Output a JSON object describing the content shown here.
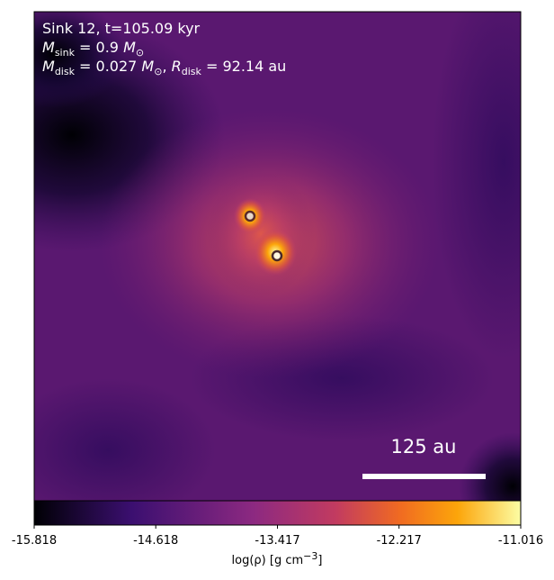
{
  "chart_data": {
    "type": "image",
    "annotations": {
      "line1": "Sink 12, t=105.09 kyr",
      "line2": [
        "M",
        "sink",
        " = 0.9 ",
        "M",
        "⊙"
      ],
      "line3": [
        "M",
        "disk",
        " = 0.027 ",
        "M",
        "⊙",
        ", ",
        "R",
        "disk",
        " = 92.14 au"
      ]
    },
    "scale_bar": "125 au",
    "colorbar": {
      "label": [
        "log(ρ) [g cm",
        "−3",
        "]"
      ],
      "xlim": [
        -15.818,
        -11.016
      ],
      "xticks": [
        -15.818,
        -14.618,
        -13.417,
        -12.217,
        -11.016
      ]
    }
  }
}
